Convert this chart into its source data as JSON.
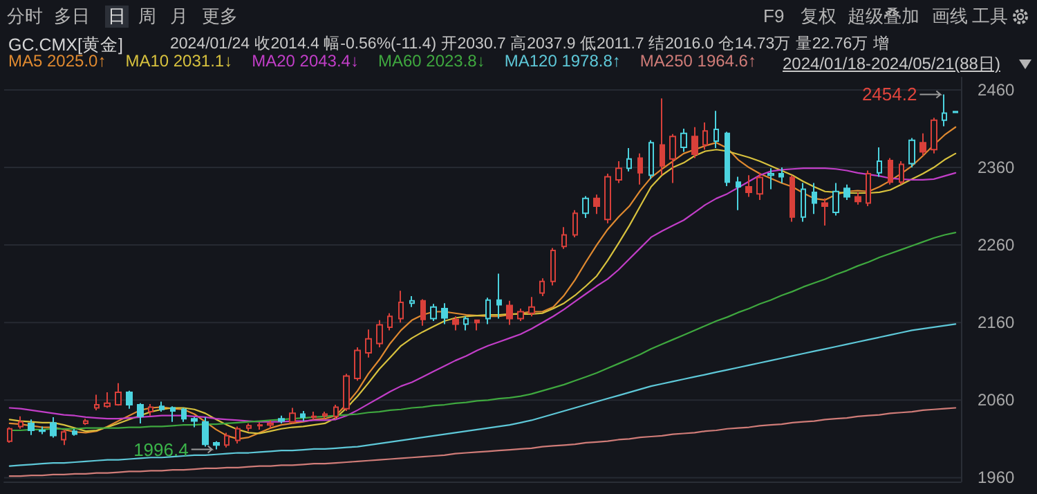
{
  "chart_data": {
    "type": "candlestick",
    "title": "GC.CMX[黄金]",
    "subtitle": "2024/01/24 收2014.4 幅-0.56%(-11.4) 开2030.7 高2037.9 低2011.7 结2016.0 仓14.73万 量22.76万 增",
    "categories": [
      null,
      null,
      null,
      null,
      null,
      null,
      null,
      null,
      null,
      null,
      null,
      null,
      null,
      null,
      null,
      null,
      null,
      null,
      null,
      null,
      null,
      null,
      null,
      null,
      null,
      null,
      null,
      null,
      null,
      null,
      null,
      null,
      null,
      null,
      null,
      null,
      null,
      null,
      null,
      null,
      null,
      null,
      null,
      null,
      null,
      null,
      null,
      null,
      null,
      null,
      null,
      null,
      null,
      null,
      null,
      null,
      null,
      null,
      null,
      null,
      null,
      null,
      null,
      null,
      null,
      null,
      null,
      null,
      null,
      null,
      null,
      null,
      null,
      null,
      null,
      null,
      null,
      null,
      null,
      null,
      null,
      null,
      null,
      null,
      null,
      null,
      null,
      null
    ],
    "colors": [
      "#d9403a",
      "#d9403a",
      "#4cd3df",
      "#4cd3df",
      "#4cd3df",
      "#d9403a",
      "#4cd3df",
      "#d9403a",
      "#d9403a",
      "#d9403a",
      "#d9403a",
      "#4cd3df",
      "#4cd3df",
      "#d9403a",
      "#4cd3df",
      "#4cd3df",
      "#4cd3df",
      "#4cd3df",
      "#4cd3df",
      "#4cd3df",
      "#d9403a",
      "#d9403a",
      "#d9403a",
      "#d9403a",
      "#d9403a",
      "#4cd3df",
      "#d9403a",
      "#4cd3df",
      "#d9403a",
      "#d9403a",
      "#d9403a",
      "#d9403a",
      "#d9403a",
      "#d9403a",
      "#d9403a",
      "#d9403a",
      "#d9403a",
      "#4cd3df",
      "#d9403a",
      "#4cd3df",
      "#4cd3df",
      "#d9403a",
      "#4cd3df",
      "#d9403a",
      "#4cd3df",
      "#4cd3df",
      "#d9403a",
      "#d9403a",
      "#d9403a",
      "#d9403a",
      "#d9403a",
      "#d9403a",
      "#d9403a",
      "#4cd3df",
      "#d9403a",
      "#d9403a",
      "#d9403a",
      "#4cd3df",
      "#d9403a",
      "#4cd3df",
      "#d9403a",
      "#d9403a",
      "#4cd3df",
      "#d9403a",
      "#d9403a",
      "#4cd3df",
      "#4cd3df",
      "#4cd3df",
      "#d9403a",
      "#d9403a",
      "#4cd3df",
      "#4cd3df",
      "#d9403a",
      "#4cd3df",
      "#4cd3df",
      "#d9403a",
      "#4cd3df",
      "#4cd3df",
      "#d9403a",
      "#d9403a",
      "#4cd3df",
      "#d9403a",
      "#d9403a",
      "#4cd3df",
      "#d9403a",
      "#d9403a",
      "#4cd3df",
      "#4cd3df"
    ],
    "ohlc": [
      [
        2007,
        2025,
        2005,
        2023
      ],
      [
        2026,
        2039,
        2023,
        2032
      ],
      [
        2030,
        2035,
        2015,
        2021
      ],
      [
        2021,
        2026,
        2016,
        2020
      ],
      [
        2030.7,
        2037.9,
        2011.7,
        2014.4
      ],
      [
        2009,
        2022,
        2002,
        2019
      ],
      [
        2020,
        2023,
        2014,
        2016
      ],
      [
        2030,
        2036,
        2028,
        2033
      ],
      [
        2050,
        2067,
        2047,
        2054
      ],
      [
        2052,
        2070,
        2050,
        2056
      ],
      [
        2054,
        2082,
        2053,
        2070
      ],
      [
        2070,
        2072,
        2049,
        2054
      ],
      [
        2054,
        2056,
        2030,
        2039
      ],
      [
        2045,
        2055,
        2040,
        2051
      ],
      [
        2052,
        2058,
        2045,
        2048
      ],
      [
        2050,
        2052,
        2032,
        2046
      ],
      [
        2048,
        2050,
        2032,
        2036
      ],
      [
        2036,
        2038,
        2025,
        2033
      ],
      [
        2032,
        2038,
        2000,
        2003
      ],
      [
        2005,
        2007,
        1996.4,
        2002
      ],
      [
        2002,
        2018,
        1999,
        2014
      ],
      [
        2008,
        2026,
        2004,
        2023
      ],
      [
        2024,
        2030,
        2020,
        2027
      ],
      [
        2027,
        2031,
        2022,
        2028
      ],
      [
        2028,
        2034,
        2024,
        2030
      ],
      [
        2036,
        2040,
        2030,
        2033
      ],
      [
        2032,
        2050,
        2030,
        2043
      ],
      [
        2042,
        2046,
        2033,
        2038
      ],
      [
        2038,
        2045,
        2035,
        2039
      ],
      [
        2040,
        2045,
        2036,
        2042
      ],
      [
        2039,
        2054,
        2036,
        2051
      ],
      [
        2049,
        2094,
        2046,
        2091
      ],
      [
        2088,
        2128,
        2085,
        2124
      ],
      [
        2121,
        2151,
        2115,
        2139
      ],
      [
        2133,
        2163,
        2128,
        2157
      ],
      [
        2154,
        2172,
        2150,
        2168
      ],
      [
        2165,
        2201,
        2160,
        2186
      ],
      [
        2185,
        2194,
        2180,
        2188
      ],
      [
        2188,
        2190,
        2156,
        2164
      ],
      [
        2165,
        2184,
        2162,
        2180
      ],
      [
        2178,
        2185,
        2158,
        2166
      ],
      [
        2164,
        2168,
        2150,
        2158
      ],
      [
        2158,
        2168,
        2150,
        2165
      ],
      [
        2163,
        2164,
        2150,
        2160
      ],
      [
        2165,
        2192,
        2158,
        2189
      ],
      [
        2189,
        2223,
        2165,
        2183
      ],
      [
        2182,
        2188,
        2157,
        2165
      ],
      [
        2165,
        2178,
        2162,
        2174
      ],
      [
        2172,
        2193,
        2168,
        2180
      ],
      [
        2198,
        2217,
        2194,
        2213
      ],
      [
        2213,
        2256,
        2208,
        2253
      ],
      [
        2258,
        2283,
        2255,
        2273
      ],
      [
        2273,
        2305,
        2270,
        2301
      ],
      [
        2301,
        2323,
        2295,
        2320
      ],
      [
        2320,
        2325,
        2300,
        2310
      ],
      [
        2293,
        2352,
        2288,
        2348
      ],
      [
        2344,
        2368,
        2340,
        2359
      ],
      [
        2359,
        2385,
        2355,
        2371
      ],
      [
        2372,
        2378,
        2338,
        2353
      ],
      [
        2350,
        2395,
        2345,
        2392
      ],
      [
        2389,
        2449,
        2350,
        2362
      ],
      [
        2371,
        2403,
        2340,
        2400
      ],
      [
        2386,
        2410,
        2380,
        2404
      ],
      [
        2400,
        2412,
        2372,
        2377
      ],
      [
        2389,
        2418,
        2383,
        2407
      ],
      [
        2394,
        2433,
        2385,
        2409
      ],
      [
        2404,
        2406,
        2336,
        2341
      ],
      [
        2341,
        2348,
        2305,
        2335
      ],
      [
        2335,
        2350,
        2322,
        2328
      ],
      [
        2326,
        2353,
        2318,
        2347
      ],
      [
        2350,
        2359,
        2332,
        2352
      ],
      [
        2352,
        2360,
        2340,
        2348
      ],
      [
        2347,
        2350,
        2290,
        2296
      ],
      [
        2296,
        2340,
        2290,
        2332
      ],
      [
        2328,
        2340,
        2300,
        2314
      ],
      [
        2314,
        2320,
        2285,
        2310
      ],
      [
        2302,
        2340,
        2298,
        2329
      ],
      [
        2333,
        2338,
        2318,
        2322
      ],
      [
        2322,
        2328,
        2312,
        2316
      ],
      [
        2314,
        2356,
        2310,
        2352
      ],
      [
        2353,
        2386,
        2348,
        2368
      ],
      [
        2369,
        2372,
        2338,
        2341
      ],
      [
        2341,
        2368,
        2338,
        2364
      ],
      [
        2365,
        2398,
        2360,
        2395
      ],
      [
        2392,
        2404,
        2375,
        2380
      ],
      [
        2383,
        2424,
        2378,
        2421
      ],
      [
        2421,
        2454.2,
        2413,
        2430
      ],
      [
        2432,
        2433,
        2430,
        2431
      ]
    ],
    "series": [
      {
        "name": "MA5",
        "type": "line",
        "color": "#e08a30",
        "values": [
          2030,
          2029,
          2027,
          2025,
          2025,
          2022,
          2019,
          2018,
          2020,
          2026,
          2033,
          2040,
          2047,
          2050,
          2051,
          2049,
          2048,
          2042,
          2032,
          2022,
          2014,
          2010,
          2012,
          2018,
          2024,
          2028,
          2030,
          2032,
          2035,
          2036,
          2040,
          2055,
          2072,
          2094,
          2112,
          2133,
          2150,
          2163,
          2170,
          2174,
          2174,
          2172,
          2170,
          2169,
          2168,
          2168,
          2170,
          2172,
          2174,
          2174,
          2180,
          2195,
          2215,
          2238,
          2260,
          2280,
          2296,
          2310,
          2330,
          2347,
          2358,
          2368,
          2378,
          2383,
          2388,
          2392,
          2385,
          2370,
          2360,
          2352,
          2346,
          2340,
          2335,
          2327,
          2320,
          2318,
          2325,
          2329,
          2330,
          2329,
          2335,
          2343,
          2352,
          2362,
          2375,
          2389,
          2402,
          2412
        ]
      },
      {
        "name": "MA10",
        "type": "line",
        "color": "#d8c23e",
        "values": [
          2035,
          2033,
          2032,
          2031,
          2031,
          2028,
          2024,
          2020,
          2021,
          2025,
          2030,
          2035,
          2040,
          2045,
          2048,
          2050,
          2050,
          2048,
          2043,
          2035,
          2028,
          2022,
          2018,
          2017,
          2020,
          2023,
          2025,
          2026,
          2028,
          2030,
          2037,
          2050,
          2065,
          2082,
          2100,
          2115,
          2130,
          2140,
          2148,
          2155,
          2162,
          2166,
          2168,
          2169,
          2170,
          2170,
          2171,
          2171,
          2171,
          2172,
          2178,
          2185,
          2195,
          2207,
          2220,
          2240,
          2262,
          2285,
          2310,
          2335,
          2350,
          2360,
          2366,
          2375,
          2381,
          2383,
          2381,
          2377,
          2373,
          2368,
          2362,
          2356,
          2350,
          2342,
          2335,
          2329,
          2328,
          2327,
          2327,
          2327,
          2328,
          2331,
          2338,
          2345,
          2352,
          2360,
          2370,
          2378
        ]
      },
      {
        "name": "MA20",
        "type": "line",
        "color": "#c23ec8",
        "values": [
          2050,
          2049,
          2047,
          2045,
          2043,
          2041,
          2040,
          2038,
          2037,
          2036,
          2036,
          2037,
          2038,
          2039,
          2040,
          2040,
          2040,
          2039,
          2038,
          2036,
          2035,
          2034,
          2033,
          2032,
          2032,
          2032,
          2033,
          2033,
          2034,
          2034,
          2035,
          2040,
          2047,
          2055,
          2063,
          2071,
          2078,
          2083,
          2090,
          2097,
          2104,
          2111,
          2117,
          2124,
          2130,
          2135,
          2140,
          2145,
          2152,
          2160,
          2168,
          2177,
          2187,
          2197,
          2207,
          2216,
          2228,
          2242,
          2256,
          2270,
          2278,
          2285,
          2292,
          2302,
          2312,
          2320,
          2326,
          2334,
          2342,
          2350,
          2355,
          2357,
          2358,
          2359,
          2359,
          2359,
          2358,
          2356,
          2353,
          2351,
          2349,
          2346,
          2345,
          2344,
          2344,
          2345,
          2349,
          2353
        ]
      },
      {
        "name": "MA60",
        "type": "line",
        "color": "#3fa83f",
        "values": [
          2021,
          2021,
          2022,
          2022,
          2023,
          2023,
          2023,
          2024,
          2024,
          2024,
          2024,
          2025,
          2025,
          2026,
          2026,
          2027,
          2028,
          2028,
          2029,
          2029,
          2030,
          2031,
          2032,
          2033,
          2034,
          2035,
          2036,
          2037,
          2038,
          2039,
          2040,
          2041,
          2042,
          2044,
          2045,
          2047,
          2048,
          2050,
          2051,
          2053,
          2054,
          2056,
          2057,
          2059,
          2060,
          2062,
          2063,
          2065,
          2068,
          2072,
          2076,
          2080,
          2085,
          2090,
          2095,
          2101,
          2107,
          2113,
          2119,
          2126,
          2132,
          2138,
          2144,
          2150,
          2156,
          2162,
          2167,
          2173,
          2178,
          2184,
          2189,
          2195,
          2200,
          2206,
          2211,
          2216,
          2222,
          2227,
          2233,
          2238,
          2244,
          2249,
          2254,
          2259,
          2264,
          2269,
          2273,
          2276
        ]
      },
      {
        "name": "MA120",
        "type": "line",
        "color": "#5ec8d8",
        "values": [
          1975,
          1976,
          1977,
          1978,
          1979,
          1979,
          1980,
          1981,
          1982,
          1983,
          1983,
          1984,
          1985,
          1986,
          1986,
          1987,
          1988,
          1989,
          1989,
          1990,
          1991,
          1992,
          1992,
          1993,
          1994,
          1995,
          1995,
          1996,
          1997,
          1997,
          1998,
          1999,
          2000,
          2002,
          2004,
          2006,
          2008,
          2010,
          2012,
          2014,
          2016,
          2018,
          2020,
          2022,
          2024,
          2026,
          2028,
          2031,
          2034,
          2038,
          2042,
          2046,
          2050,
          2054,
          2058,
          2062,
          2066,
          2070,
          2074,
          2078,
          2081,
          2084,
          2087,
          2090,
          2093,
          2096,
          2099,
          2102,
          2105,
          2108,
          2111,
          2114,
          2117,
          2120,
          2123,
          2126,
          2129,
          2132,
          2135,
          2138,
          2141,
          2144,
          2147,
          2150,
          2152,
          2154,
          2156,
          2158
        ]
      },
      {
        "name": "MA250",
        "type": "line",
        "color": "#d07c78",
        "values": [
          1962,
          1962,
          1963,
          1963,
          1964,
          1964,
          1965,
          1965,
          1966,
          1966,
          1967,
          1968,
          1968,
          1969,
          1969,
          1970,
          1970,
          1971,
          1972,
          1972,
          1973,
          1973,
          1974,
          1975,
          1975,
          1976,
          1976,
          1977,
          1978,
          1978,
          1979,
          1980,
          1981,
          1982,
          1983,
          1984,
          1985,
          1986,
          1987,
          1988,
          1989,
          1991,
          1992,
          1993,
          1994,
          1995,
          1996,
          1997,
          1998,
          2000,
          2001,
          2002,
          2003,
          2005,
          2006,
          2007,
          2009,
          2010,
          2012,
          2013,
          2014,
          2016,
          2017,
          2018,
          2020,
          2021,
          2023,
          2024,
          2025,
          2027,
          2028,
          2029,
          2031,
          2032,
          2033,
          2035,
          2036,
          2037,
          2039,
          2040,
          2041,
          2043,
          2044,
          2045,
          2047,
          2048,
          2049,
          2050
        ]
      }
    ],
    "ylim": [
      1955,
      2476
    ],
    "yticks": [
      1960,
      2060,
      2160,
      2260,
      2360,
      2460
    ],
    "tick_labels": "y",
    "grid": "y",
    "legend": "top left",
    "marker": "none",
    "line_style": "solid",
    "annotations": [
      "分时",
      "多日",
      "日",
      "周",
      "月",
      "更多",
      "F9",
      "复权",
      "超级叠加",
      "画线",
      "工具",
      "2025.0↑",
      "2031.1↓",
      "2043.4↓",
      "2023.8↓",
      "1978.8↑",
      "1964.6↑",
      "2024/01/18-2024/05/21(88日)",
      "2454.2",
      "1996.4"
    ]
  }
}
